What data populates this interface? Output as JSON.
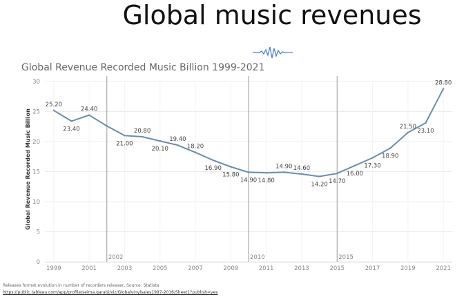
{
  "slide": {
    "title": "Global music revenues",
    "icon": "waveform-icon"
  },
  "source": {
    "note": "Releases format evolution in number of recorders releaser, Source: Statista",
    "link": "https://public.tableau.com/app/profile/seima.garabi/viz/Globalvinylsales1997-2016/Sheet1?publish=yes"
  },
  "chart_data": {
    "type": "line",
    "title": "Global Revenue Recorded Music Billion 1999-2021",
    "xlabel": "",
    "ylabel": "Global Revenue Recorded Music Billion",
    "xlim": [
      1998.5,
      2021.5
    ],
    "ylim": [
      0,
      30
    ],
    "yticks": [
      0,
      5,
      10,
      15,
      20,
      25,
      30
    ],
    "xticks": [
      1999,
      2001,
      2003,
      2005,
      2007,
      2009,
      2011,
      2013,
      2015,
      2017,
      2019,
      2021
    ],
    "grid": true,
    "color": "#6a8caf",
    "reference_lines": [
      {
        "x": 2002,
        "label": "2002"
      },
      {
        "x": 2010,
        "label": "2010"
      },
      {
        "x": 2015,
        "label": "2015"
      }
    ],
    "x": [
      1999,
      2000,
      2001,
      2002,
      2003,
      2004,
      2005,
      2006,
      2007,
      2008,
      2009,
      2010,
      2011,
      2012,
      2013,
      2014,
      2015,
      2016,
      2017,
      2018,
      2019,
      2020,
      2021
    ],
    "values": [
      25.2,
      23.4,
      24.4,
      22.6,
      21.0,
      20.8,
      20.1,
      19.4,
      18.2,
      16.9,
      15.8,
      14.9,
      14.8,
      14.9,
      14.6,
      14.2,
      14.7,
      16.0,
      17.3,
      18.9,
      21.5,
      23.1,
      28.8
    ],
    "labels": [
      {
        "x": 1999,
        "text": "25.20",
        "pos": "above"
      },
      {
        "x": 2000,
        "text": "23.40",
        "pos": "below"
      },
      {
        "x": 2001,
        "text": "24.40",
        "pos": "above"
      },
      {
        "x": 2003,
        "text": "21.00",
        "pos": "below"
      },
      {
        "x": 2004,
        "text": "20.80",
        "pos": "above"
      },
      {
        "x": 2005,
        "text": "20.10",
        "pos": "below"
      },
      {
        "x": 2006,
        "text": "19.40",
        "pos": "above"
      },
      {
        "x": 2007,
        "text": "18.20",
        "pos": "above"
      },
      {
        "x": 2008,
        "text": "16.90",
        "pos": "below"
      },
      {
        "x": 2009,
        "text": "15.80",
        "pos": "below"
      },
      {
        "x": 2010,
        "text": "14.90",
        "pos": "below"
      },
      {
        "x": 2011,
        "text": "14.80",
        "pos": "below"
      },
      {
        "x": 2012,
        "text": "14.90",
        "pos": "above"
      },
      {
        "x": 2013,
        "text": "14.60",
        "pos": "above"
      },
      {
        "x": 2014,
        "text": "14.20",
        "pos": "below"
      },
      {
        "x": 2015,
        "text": "14.70",
        "pos": "below"
      },
      {
        "x": 2016,
        "text": "16.00",
        "pos": "below"
      },
      {
        "x": 2017,
        "text": "17.30",
        "pos": "below"
      },
      {
        "x": 2018,
        "text": "18.90",
        "pos": "below"
      },
      {
        "x": 2019,
        "text": "21.50",
        "pos": "above"
      },
      {
        "x": 2020,
        "text": "23.10",
        "pos": "below"
      },
      {
        "x": 2021,
        "text": "28.80",
        "pos": "above"
      }
    ]
  }
}
